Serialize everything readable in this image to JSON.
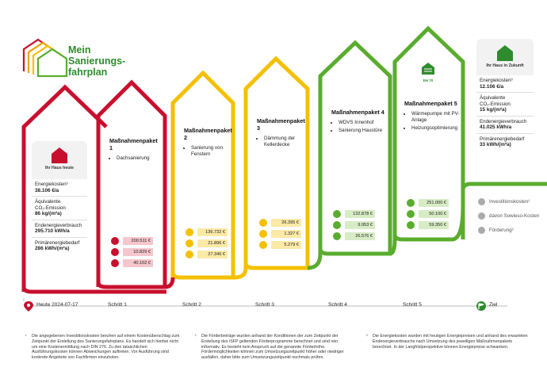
{
  "logo": {
    "line1": "Mein",
    "line2": "Sanierungs-",
    "line3": "fahrplan"
  },
  "today": {
    "label": "Ihr Haus heute",
    "energy_costs_label": "Energiekosten³",
    "energy_costs": "38.106 €/a",
    "co2_label_a": "Äquivalente",
    "co2_label_b": "CO₂-Emission",
    "co2": "86 kg/(m²a)",
    "final_energy_label": "Endenergieverbrauch",
    "final_energy": "295.710 kWh/a",
    "primary_label": "Primärenergiebedarf",
    "primary": "286 kWh/(m²a)"
  },
  "future": {
    "label": "Ihr Haus in Zukunft",
    "energy_costs_label": "Energiekosten³",
    "energy_costs": "12.106 €/a",
    "co2_label_a": "Äquivalente",
    "co2_label_b": "CO₂-Emission",
    "co2": "15 kg/(m²a)",
    "final_energy_label": "Endenergieverbrauch",
    "final_energy": "41.025 kWh/a",
    "primary_label": "Primärenergiebedarf",
    "primary": "33 kWh/(m²a)"
  },
  "packages": [
    {
      "title": "Maßnahmenpaket 1",
      "items": [
        "Dachsanierung"
      ],
      "invest": "200.511 €",
      "sowieso": "10.829 €",
      "foerderung": "40.102 €"
    },
    {
      "title": "Maßnahmenpaket 2",
      "items": [
        "Sanierung von Fenstern"
      ],
      "invest": "136.732 €",
      "sowieso": "21.896 €",
      "foerderung": "27.346 €"
    },
    {
      "title": "Maßnahmenpaket 3",
      "items": [
        "Dämmung der Kellerdecke"
      ],
      "invest": "26.395 €",
      "sowieso": "1.327 €",
      "foerderung": "5.279 €"
    },
    {
      "title": "Maßnahmenpaket 4",
      "items": [
        "WDVS Innenhof",
        "Sanierung Haustüre"
      ],
      "invest": "132.878 €",
      "sowieso": "9.953 €",
      "foerderung": "26.576 €"
    },
    {
      "title": "Maßnahmenpaket 5",
      "items": [
        "Wärmepumpe mit PV-Anlage",
        "Heizungsoptimierung"
      ],
      "invest": "251.000 €",
      "sowieso": "50.100 €",
      "foerderung": "59.350 €"
    }
  ],
  "eh_label": "EH 70",
  "legend": {
    "invest": "Investitionskosten¹",
    "sowieso": "davon Sowieso-Kosten",
    "foerderung": "Förderung²"
  },
  "timeline": {
    "start": "Heute 2024-07-17",
    "steps": [
      "Schritt 1",
      "Schritt 2",
      "Schritt 3",
      "Schritt 4",
      "Schritt 5"
    ],
    "goal": "Ziel"
  },
  "footnotes": [
    {
      "mark": "¹",
      "text": "Die angegebenen Investitionskosten beruhen auf einem Kostenüberschlag zum Zeitpunkt der Erstellung des Sanierungsfahrplans. Es handelt sich hierbei nicht um eine Kostenermittlung nach DIN 276. Zu den tatsächlichen Ausführungskosten können Abweichungen auftreten. Vor Ausführung sind konkrete Angebote von Fachfirmen einzuholen."
    },
    {
      "mark": "²",
      "text": "Die Förderbeträge wurden anhand der Konditionen der zum Zeitpunkt der Erstellung des iSFP geltenden Förderprogramme berechnet und sind rein informativ. Es besteht kein Anspruch auf die genannte Förderhöhe. Fördermöglichkeiten können zum Umsetzungszeitpunkt höher oder niedriger ausfallen, daher bitte zum Umsetzungszeitpunkt nochmals prüfen."
    },
    {
      "mark": "³",
      "text": "Die Energiekosten wurden mit heutigen Energiepreisen und anhand des erwarteten Endenergieverbrauchs nach Umsetzung des jeweiligen Maßnahmenpakets berechnet. In der Langfristperspektive können Energiepreise schwanken."
    }
  ],
  "colors": {
    "red": "#c8102e",
    "orange": "#e8a300",
    "yellow": "#f4c000",
    "green": "#5aac2e",
    "lightgreen": "#8cc63f",
    "grey": "#aaaaaa"
  },
  "icons": [
    "house-icon",
    "coins-icon",
    "percent-icon",
    "hand-icon",
    "flag-icon",
    "pin-icon"
  ]
}
